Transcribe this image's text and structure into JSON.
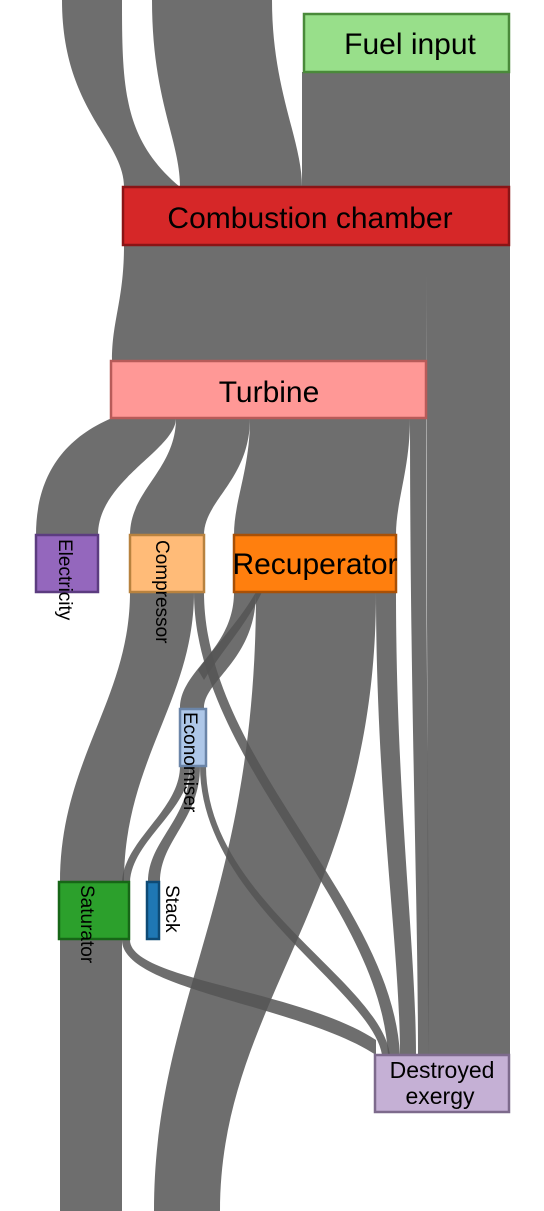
{
  "diagram": {
    "type": "sankey",
    "nodes": [
      {
        "id": "fuel",
        "label": "Fuel input",
        "color": "#98df8a",
        "stroke": "#4a8a3a"
      },
      {
        "id": "combustion",
        "label": "Combustion chamber",
        "color": "#d62728",
        "stroke": "#8a1416"
      },
      {
        "id": "turbine",
        "label": "Turbine",
        "color": "#ff9896",
        "stroke": "#b85b59"
      },
      {
        "id": "electricity",
        "label": "Electricity",
        "color": "#9467bd",
        "stroke": "#5c3c80"
      },
      {
        "id": "compressor",
        "label": "Compressor",
        "color": "#ffbb78",
        "stroke": "#b8823f"
      },
      {
        "id": "recuperator",
        "label": "Recuperator",
        "color": "#ff7f0e",
        "stroke": "#a85006"
      },
      {
        "id": "economiser",
        "label": "Economiser",
        "color": "#aec7e8",
        "stroke": "#6b85a8"
      },
      {
        "id": "saturator",
        "label": "Saturator",
        "color": "#2ca02c",
        "stroke": "#176617"
      },
      {
        "id": "stack",
        "label": "Stack",
        "color": "#1f77b4",
        "stroke": "#0e4a75"
      },
      {
        "id": "destroyed",
        "label_lines": [
          "Destroyed",
          "exergy"
        ],
        "color": "#c5b0d5",
        "stroke": "#7d6a8c"
      }
    ],
    "flow_color": "#555555"
  }
}
